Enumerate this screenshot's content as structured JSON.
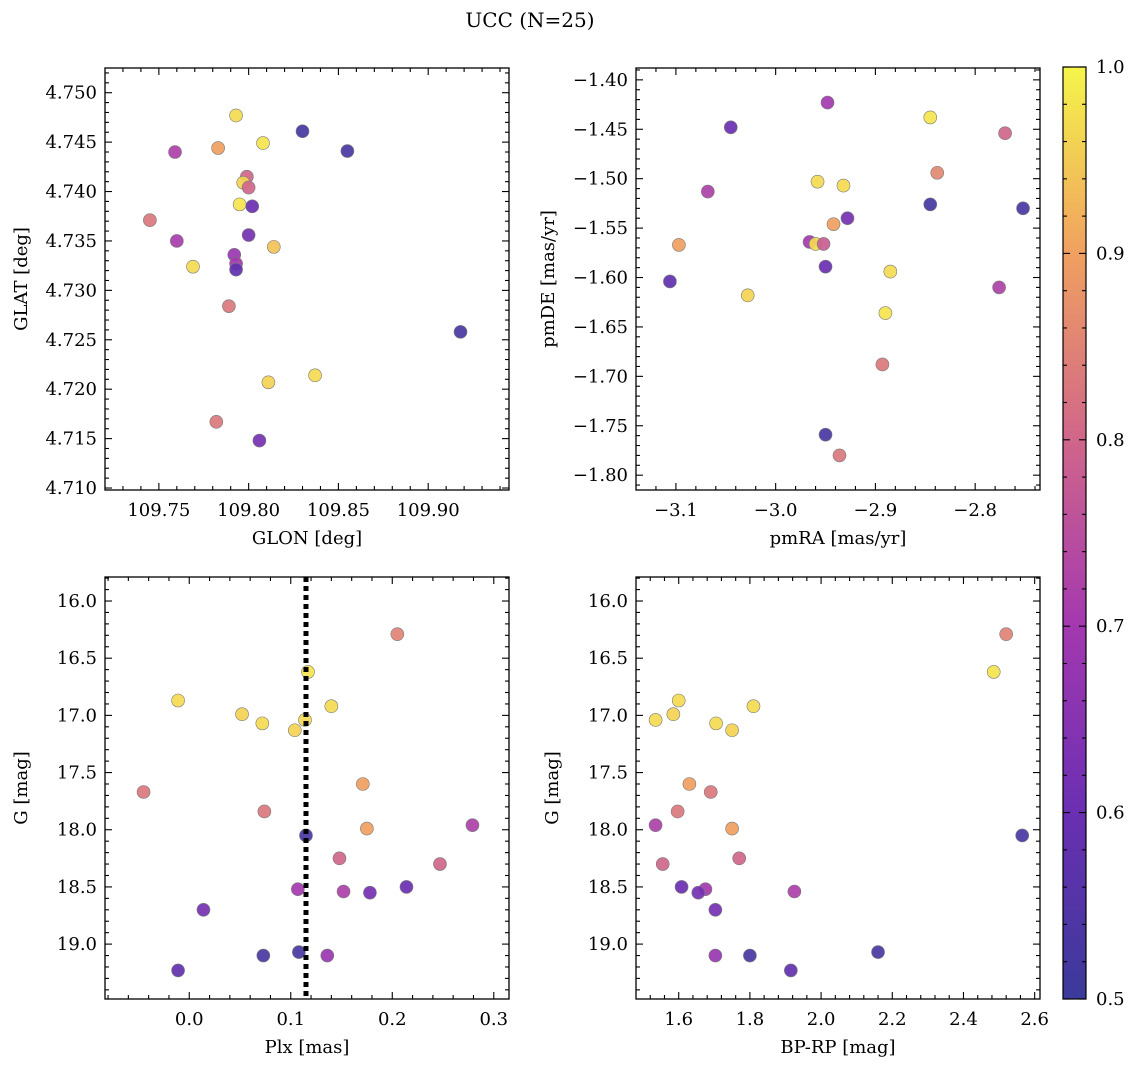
{
  "figure": {
    "title": "UCC (N=25)"
  },
  "colorbar": {
    "ticks": [
      "0.5",
      "0.6",
      "0.7",
      "0.8",
      "0.9",
      "1.0"
    ],
    "range": [
      0.5,
      1.0
    ],
    "colormap": "plasma"
  },
  "chart_data": [
    {
      "type": "scatter",
      "xlabel": "GLON [deg]",
      "ylabel": "GLAT [deg]",
      "xlim": [
        109.72,
        109.945
      ],
      "ylim": [
        4.7098,
        4.7525
      ],
      "xticks": [
        109.75,
        109.8,
        109.85,
        109.9
      ],
      "xtick_labels": [
        "109.75",
        "109.80",
        "109.85",
        "109.90"
      ],
      "yticks": [
        4.71,
        4.715,
        4.72,
        4.725,
        4.73,
        4.735,
        4.74,
        4.745,
        4.75
      ],
      "ytick_labels": [
        "4.710",
        "4.715",
        "4.720",
        "4.725",
        "4.730",
        "4.735",
        "4.740",
        "4.745",
        "4.750"
      ],
      "points": [
        {
          "x": 109.793,
          "y": 4.7477,
          "c": 0.97
        },
        {
          "x": 109.83,
          "y": 4.7461,
          "c": 0.52
        },
        {
          "x": 109.808,
          "y": 4.7449,
          "c": 0.98
        },
        {
          "x": 109.759,
          "y": 4.744,
          "c": 0.72
        },
        {
          "x": 109.783,
          "y": 4.7444,
          "c": 0.9
        },
        {
          "x": 109.855,
          "y": 4.7441,
          "c": 0.53
        },
        {
          "x": 109.799,
          "y": 4.7415,
          "c": 0.8
        },
        {
          "x": 109.797,
          "y": 4.7409,
          "c": 0.96
        },
        {
          "x": 109.8,
          "y": 4.7404,
          "c": 0.8
        },
        {
          "x": 109.795,
          "y": 4.7387,
          "c": 0.98
        },
        {
          "x": 109.802,
          "y": 4.7385,
          "c": 0.6
        },
        {
          "x": 109.745,
          "y": 4.7371,
          "c": 0.83
        },
        {
          "x": 109.8,
          "y": 4.7356,
          "c": 0.62
        },
        {
          "x": 109.76,
          "y": 4.735,
          "c": 0.71
        },
        {
          "x": 109.814,
          "y": 4.7344,
          "c": 0.94
        },
        {
          "x": 109.792,
          "y": 4.7336,
          "c": 0.68
        },
        {
          "x": 109.769,
          "y": 4.7324,
          "c": 0.97
        },
        {
          "x": 109.793,
          "y": 4.7327,
          "c": 0.7
        },
        {
          "x": 109.793,
          "y": 4.7321,
          "c": 0.58
        },
        {
          "x": 109.789,
          "y": 4.7284,
          "c": 0.83
        },
        {
          "x": 109.918,
          "y": 4.7258,
          "c": 0.53
        },
        {
          "x": 109.837,
          "y": 4.7214,
          "c": 0.97
        },
        {
          "x": 109.811,
          "y": 4.7207,
          "c": 0.96
        },
        {
          "x": 109.782,
          "y": 4.7167,
          "c": 0.83
        },
        {
          "x": 109.806,
          "y": 4.7148,
          "c": 0.62
        }
      ]
    },
    {
      "type": "scatter",
      "xlabel": "pmRA [mas/yr]",
      "ylabel": "pmDE [mas/yr]",
      "xlim": [
        -3.14,
        -2.735
      ],
      "ylim": [
        -1.815,
        -1.388
      ],
      "xticks": [
        -3.1,
        -3.0,
        -2.9,
        -2.8
      ],
      "xtick_labels": [
        "−3.1",
        "−3.0",
        "−2.9",
        "−2.8"
      ],
      "yticks": [
        -1.8,
        -1.75,
        -1.7,
        -1.65,
        -1.6,
        -1.55,
        -1.5,
        -1.45,
        -1.4
      ],
      "ytick_labels": [
        "−1.80",
        "−1.75",
        "−1.70",
        "−1.65",
        "−1.60",
        "−1.55",
        "−1.50",
        "−1.45",
        "−1.40"
      ],
      "points": [
        {
          "x": -2.948,
          "y": -1.423,
          "c": 0.7
        },
        {
          "x": -2.845,
          "y": -1.438,
          "c": 0.98
        },
        {
          "x": -3.045,
          "y": -1.448,
          "c": 0.6
        },
        {
          "x": -2.77,
          "y": -1.454,
          "c": 0.8
        },
        {
          "x": -2.838,
          "y": -1.494,
          "c": 0.86
        },
        {
          "x": -2.958,
          "y": -1.503,
          "c": 0.97
        },
        {
          "x": -2.932,
          "y": -1.507,
          "c": 0.97
        },
        {
          "x": -3.068,
          "y": -1.513,
          "c": 0.72
        },
        {
          "x": -2.845,
          "y": -1.526,
          "c": 0.52
        },
        {
          "x": -2.752,
          "y": -1.53,
          "c": 0.53
        },
        {
          "x": -2.928,
          "y": -1.54,
          "c": 0.62
        },
        {
          "x": -2.942,
          "y": -1.546,
          "c": 0.9
        },
        {
          "x": -2.966,
          "y": -1.564,
          "c": 0.7
        },
        {
          "x": -2.96,
          "y": -1.566,
          "c": 0.97
        },
        {
          "x": -2.952,
          "y": -1.566,
          "c": 0.78
        },
        {
          "x": -3.097,
          "y": -1.567,
          "c": 0.9
        },
        {
          "x": -2.95,
          "y": -1.589,
          "c": 0.6
        },
        {
          "x": -2.885,
          "y": -1.594,
          "c": 0.97
        },
        {
          "x": -3.106,
          "y": -1.604,
          "c": 0.58
        },
        {
          "x": -2.776,
          "y": -1.61,
          "c": 0.72
        },
        {
          "x": -3.028,
          "y": -1.618,
          "c": 0.96
        },
        {
          "x": -2.89,
          "y": -1.636,
          "c": 0.98
        },
        {
          "x": -2.893,
          "y": -1.688,
          "c": 0.83
        },
        {
          "x": -2.95,
          "y": -1.759,
          "c": 0.53
        },
        {
          "x": -2.936,
          "y": -1.78,
          "c": 0.83
        }
      ]
    },
    {
      "type": "scatter",
      "xlabel": "Plx [mas]",
      "ylabel": "G [mag]",
      "xlim": [
        -0.083,
        0.315
      ],
      "ylim": [
        19.48,
        15.79
      ],
      "xticks": [
        0.0,
        0.1,
        0.2,
        0.3
      ],
      "xtick_labels": [
        "0.0",
        "0.1",
        "0.2",
        "0.3"
      ],
      "yticks": [
        16.0,
        16.5,
        17.0,
        17.5,
        18.0,
        18.5,
        19.0
      ],
      "ytick_labels": [
        "16.0",
        "16.5",
        "17.0",
        "17.5",
        "18.0",
        "18.5",
        "19.0"
      ],
      "vline_x": 0.115,
      "points": [
        {
          "x": 0.205,
          "y": 16.29,
          "c": 0.85
        },
        {
          "x": 0.117,
          "y": 16.62,
          "c": 0.98
        },
        {
          "x": -0.011,
          "y": 16.87,
          "c": 0.97
        },
        {
          "x": 0.14,
          "y": 16.92,
          "c": 0.97
        },
        {
          "x": 0.052,
          "y": 16.99,
          "c": 0.96
        },
        {
          "x": 0.114,
          "y": 17.04,
          "c": 0.97
        },
        {
          "x": 0.072,
          "y": 17.07,
          "c": 0.97
        },
        {
          "x": 0.104,
          "y": 17.13,
          "c": 0.96
        },
        {
          "x": 0.171,
          "y": 17.6,
          "c": 0.9
        },
        {
          "x": -0.045,
          "y": 17.67,
          "c": 0.83
        },
        {
          "x": 0.074,
          "y": 17.84,
          "c": 0.83
        },
        {
          "x": 0.279,
          "y": 17.96,
          "c": 0.72
        },
        {
          "x": 0.175,
          "y": 17.99,
          "c": 0.9
        },
        {
          "x": 0.115,
          "y": 18.05,
          "c": 0.53
        },
        {
          "x": 0.148,
          "y": 18.25,
          "c": 0.8
        },
        {
          "x": 0.247,
          "y": 18.3,
          "c": 0.8
        },
        {
          "x": 0.214,
          "y": 18.5,
          "c": 0.6
        },
        {
          "x": 0.107,
          "y": 18.52,
          "c": 0.7
        },
        {
          "x": 0.152,
          "y": 18.54,
          "c": 0.72
        },
        {
          "x": 0.178,
          "y": 18.55,
          "c": 0.62
        },
        {
          "x": 0.014,
          "y": 18.7,
          "c": 0.62
        },
        {
          "x": 0.108,
          "y": 19.07,
          "c": 0.53
        },
        {
          "x": 0.073,
          "y": 19.1,
          "c": 0.53
        },
        {
          "x": 0.136,
          "y": 19.1,
          "c": 0.68
        },
        {
          "x": -0.011,
          "y": 19.23,
          "c": 0.58
        }
      ]
    },
    {
      "type": "scatter",
      "xlabel": "BP-RP [mag]",
      "ylabel": "G [mag]",
      "xlim": [
        1.48,
        2.615
      ],
      "ylim": [
        19.48,
        15.79
      ],
      "xticks": [
        1.6,
        1.8,
        2.0,
        2.2,
        2.4,
        2.6
      ],
      "xtick_labels": [
        "1.6",
        "1.8",
        "2.0",
        "2.2",
        "2.4",
        "2.6"
      ],
      "yticks": [
        16.0,
        16.5,
        17.0,
        17.5,
        18.0,
        18.5,
        19.0
      ],
      "ytick_labels": [
        "16.0",
        "16.5",
        "17.0",
        "17.5",
        "18.0",
        "18.5",
        "19.0"
      ],
      "points": [
        {
          "x": 2.52,
          "y": 16.29,
          "c": 0.85
        },
        {
          "x": 2.485,
          "y": 16.62,
          "c": 0.98
        },
        {
          "x": 1.6,
          "y": 16.87,
          "c": 0.97
        },
        {
          "x": 1.81,
          "y": 16.92,
          "c": 0.97
        },
        {
          "x": 1.585,
          "y": 16.99,
          "c": 0.96
        },
        {
          "x": 1.535,
          "y": 17.04,
          "c": 0.97
        },
        {
          "x": 1.705,
          "y": 17.07,
          "c": 0.97
        },
        {
          "x": 1.75,
          "y": 17.13,
          "c": 0.96
        },
        {
          "x": 1.63,
          "y": 17.6,
          "c": 0.9
        },
        {
          "x": 1.69,
          "y": 17.67,
          "c": 0.83
        },
        {
          "x": 1.597,
          "y": 17.84,
          "c": 0.83
        },
        {
          "x": 1.535,
          "y": 17.96,
          "c": 0.72
        },
        {
          "x": 1.75,
          "y": 17.99,
          "c": 0.9
        },
        {
          "x": 2.565,
          "y": 18.05,
          "c": 0.53
        },
        {
          "x": 1.77,
          "y": 18.25,
          "c": 0.8
        },
        {
          "x": 1.555,
          "y": 18.3,
          "c": 0.8
        },
        {
          "x": 1.608,
          "y": 18.5,
          "c": 0.6
        },
        {
          "x": 1.675,
          "y": 18.52,
          "c": 0.7
        },
        {
          "x": 1.925,
          "y": 18.54,
          "c": 0.72
        },
        {
          "x": 1.655,
          "y": 18.55,
          "c": 0.62
        },
        {
          "x": 1.703,
          "y": 18.7,
          "c": 0.62
        },
        {
          "x": 2.16,
          "y": 19.07,
          "c": 0.53
        },
        {
          "x": 1.8,
          "y": 19.1,
          "c": 0.53
        },
        {
          "x": 1.703,
          "y": 19.1,
          "c": 0.68
        },
        {
          "x": 1.915,
          "y": 19.23,
          "c": 0.58
        }
      ]
    }
  ]
}
